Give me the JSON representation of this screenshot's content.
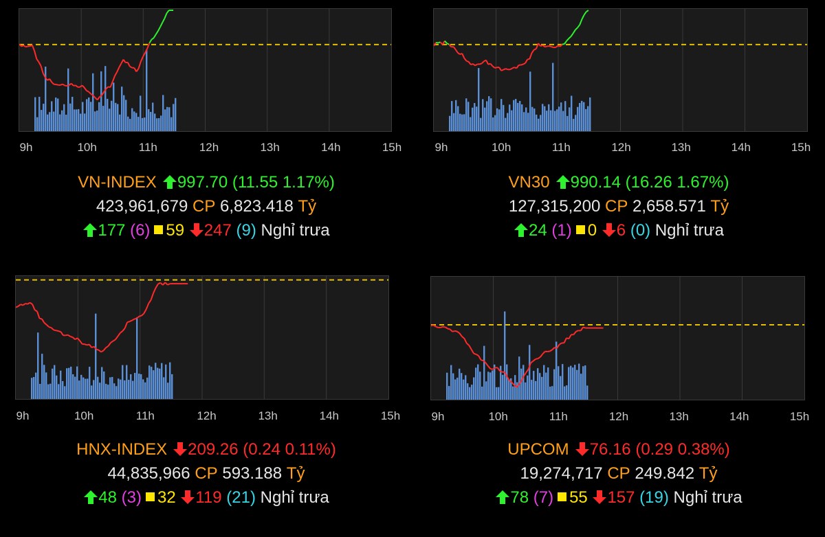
{
  "panels": [
    {
      "id": "vnindex",
      "name": "VN-INDEX",
      "direction": "up",
      "value": "997.70",
      "change": "(11.55 1.17%)",
      "volume": "423,961,679",
      "cp": "CP",
      "trade_value": "6,823.418",
      "unit": "Tỷ",
      "advances": "177",
      "ceiling": "(6)",
      "unchanged": "59",
      "declines": "247",
      "floor": "(9)",
      "session": "Nghỉ trưa",
      "time_labels": [
        "9h",
        "10h",
        "11h",
        "12h",
        "13h",
        "14h",
        "15h"
      ]
    },
    {
      "id": "vn30",
      "name": "VN30",
      "direction": "up",
      "value": "990.14",
      "change": "(16.26 1.67%)",
      "volume": "127,315,200",
      "cp": "CP",
      "trade_value": "2,658.571",
      "unit": "Tỷ",
      "advances": "24",
      "ceiling": "(1)",
      "unchanged": "0",
      "declines": "6",
      "floor": "(0)",
      "session": "Nghỉ trưa",
      "time_labels": [
        "9h",
        "10h",
        "11h",
        "12h",
        "13h",
        "14h",
        "15h"
      ]
    },
    {
      "id": "hnxindex",
      "name": "HNX-INDEX",
      "direction": "down",
      "value": "209.26",
      "change": "(0.24 0.11%)",
      "volume": "44,835,966",
      "cp": "CP",
      "trade_value": "593.188",
      "unit": "Tỷ",
      "advances": "48",
      "ceiling": "(3)",
      "unchanged": "32",
      "declines": "119",
      "floor": "(21)",
      "session": "Nghỉ trưa",
      "time_labels": [
        "9h",
        "10h",
        "11h",
        "12h",
        "13h",
        "14h",
        "15h"
      ]
    },
    {
      "id": "upcom",
      "name": "UPCOM",
      "direction": "down",
      "value": "76.16",
      "change": "(0.29 0.38%)",
      "volume": "19,274,717",
      "cp": "CP",
      "trade_value": "249.842",
      "unit": "Tỷ",
      "advances": "78",
      "ceiling": "(7)",
      "unchanged": "55",
      "declines": "157",
      "floor": "(19)",
      "session": "Nghỉ trưa",
      "time_labels": [
        "9h",
        "10h",
        "11h",
        "12h",
        "13h",
        "14h",
        "15h"
      ]
    }
  ],
  "colors": {
    "up": "#2ef22e",
    "down": "#ff2a2a",
    "reference": "#e8c000",
    "volume": "#5b8fd6",
    "label": "#ff9f1a"
  }
}
